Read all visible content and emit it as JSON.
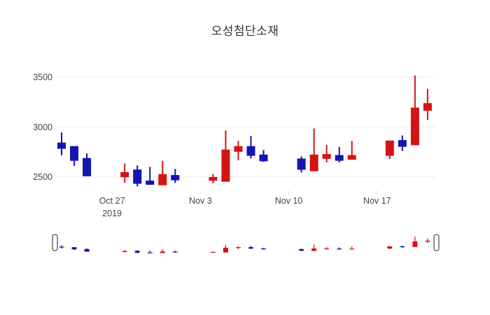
{
  "chart_data": {
    "type": "candlestick",
    "title": "오성첨단소재",
    "increasing_color": "#d31414",
    "decreasing_color": "#1414b3",
    "grid_color": "#ebebeb",
    "axis_tick_mark_color": "#d9d9d9",
    "tick_label_color": "#444444",
    "background_color": "#ffffff",
    "ylabel": "",
    "xlabel": "",
    "grid": "horizontal-only",
    "y_ticks": [
      {
        "value": 3500,
        "label": "3500"
      },
      {
        "value": 3000,
        "label": "3000"
      },
      {
        "value": 2500,
        "label": "2500"
      }
    ],
    "x_ticks": [
      {
        "day": 4,
        "label": "Oct 27",
        "sublabel": "2019"
      },
      {
        "day": 11,
        "label": "Nov 3",
        "sublabel": ""
      },
      {
        "day": 18,
        "label": "Nov 10",
        "sublabel": ""
      },
      {
        "day": 25,
        "label": "Nov 17",
        "sublabel": ""
      }
    ],
    "ylim": [
      2365,
      3605
    ],
    "x_days_span": 30,
    "ohlc": [
      {
        "date": "2019-10-23",
        "day": 0,
        "open": 2840,
        "high": 2945,
        "low": 2715,
        "close": 2785
      },
      {
        "date": "2019-10-24",
        "day": 1,
        "open": 2805,
        "high": 2805,
        "low": 2610,
        "close": 2665
      },
      {
        "date": "2019-10-25",
        "day": 2,
        "open": 2685,
        "high": 2735,
        "low": 2510,
        "close": 2510
      },
      {
        "date": "2019-10-28",
        "day": 5,
        "open": 2500,
        "high": 2635,
        "low": 2440,
        "close": 2545
      },
      {
        "date": "2019-10-29",
        "day": 6,
        "open": 2570,
        "high": 2615,
        "low": 2405,
        "close": 2435
      },
      {
        "date": "2019-10-30",
        "day": 7,
        "open": 2460,
        "high": 2600,
        "low": 2420,
        "close": 2425
      },
      {
        "date": "2019-10-31",
        "day": 8,
        "open": 2420,
        "high": 2660,
        "low": 2420,
        "close": 2525
      },
      {
        "date": "2019-11-01",
        "day": 9,
        "open": 2515,
        "high": 2580,
        "low": 2440,
        "close": 2470
      },
      {
        "date": "2019-11-04",
        "day": 12,
        "open": 2465,
        "high": 2530,
        "low": 2435,
        "close": 2495
      },
      {
        "date": "2019-11-05",
        "day": 13,
        "open": 2455,
        "high": 2965,
        "low": 2455,
        "close": 2770
      },
      {
        "date": "2019-11-06",
        "day": 14,
        "open": 2755,
        "high": 2860,
        "low": 2665,
        "close": 2805
      },
      {
        "date": "2019-11-07",
        "day": 15,
        "open": 2805,
        "high": 2910,
        "low": 2685,
        "close": 2715
      },
      {
        "date": "2019-11-08",
        "day": 16,
        "open": 2720,
        "high": 2770,
        "low": 2650,
        "close": 2660
      },
      {
        "date": "2019-11-11",
        "day": 19,
        "open": 2680,
        "high": 2705,
        "low": 2545,
        "close": 2575
      },
      {
        "date": "2019-11-12",
        "day": 20,
        "open": 2560,
        "high": 2985,
        "low": 2560,
        "close": 2720
      },
      {
        "date": "2019-11-13",
        "day": 21,
        "open": 2685,
        "high": 2820,
        "low": 2645,
        "close": 2725
      },
      {
        "date": "2019-11-14",
        "day": 22,
        "open": 2715,
        "high": 2800,
        "low": 2645,
        "close": 2665
      },
      {
        "date": "2019-11-15",
        "day": 23,
        "open": 2675,
        "high": 2860,
        "low": 2675,
        "close": 2715
      },
      {
        "date": "2019-11-18",
        "day": 26,
        "open": 2715,
        "high": 2860,
        "low": 2680,
        "close": 2860
      },
      {
        "date": "2019-11-19",
        "day": 27,
        "open": 2865,
        "high": 2915,
        "low": 2760,
        "close": 2805
      },
      {
        "date": "2019-11-20",
        "day": 28,
        "open": 2820,
        "high": 3515,
        "low": 2820,
        "close": 3190
      },
      {
        "date": "2019-11-21",
        "day": 29,
        "open": 3165,
        "high": 3380,
        "low": 3070,
        "close": 3235
      }
    ],
    "rangeslider": {
      "visible": true,
      "ylim": [
        2350,
        3550
      ],
      "handle_fill": "#ffffff",
      "handle_border": "#555555"
    }
  }
}
